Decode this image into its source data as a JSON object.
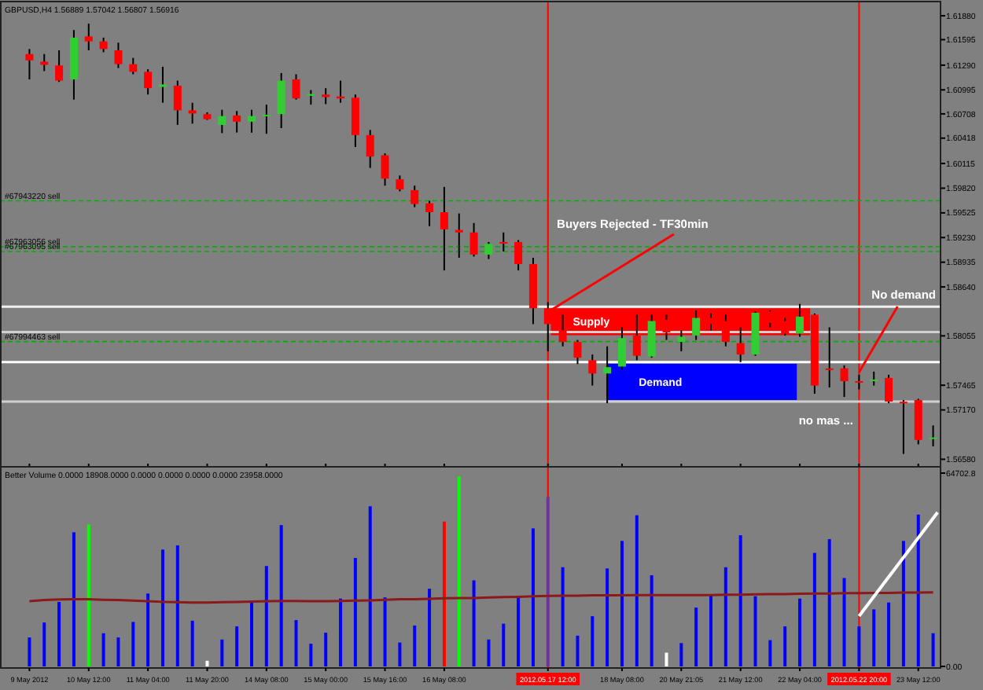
{
  "chart_data": [
    {
      "type": "candlestick",
      "title": "GBPUSD,H4 1.56889 1.57042 1.56807 1.56916",
      "categories": [
        "9 May 2012",
        null,
        null,
        null,
        "10 May 12:00",
        null,
        null,
        null,
        "11 May 04:00",
        null,
        null,
        null,
        "11 May 20:00",
        null,
        null,
        null,
        "14 May 08:00",
        null,
        null,
        null,
        "15 May 00:00",
        null,
        null,
        null,
        "15 May 16:00",
        null,
        null,
        null,
        "16 May 08:00",
        null,
        null,
        null,
        null,
        null,
        null,
        "2012.05.17 12:00",
        null,
        null,
        null,
        null,
        "18 May 08:00",
        null,
        null,
        null,
        "20 May 21:05",
        null,
        null,
        null,
        "21 May 12:00",
        null,
        null,
        null,
        "22 May 04:00",
        null,
        null,
        null,
        "2012.05.22 20:00",
        null,
        null,
        null,
        "23 May 12:00",
        null
      ],
      "ohlc": [
        [
          1.61423,
          1.61483,
          1.6112,
          1.61347
        ],
        [
          1.61332,
          1.61423,
          1.61219,
          1.61294
        ],
        [
          1.61287,
          1.61468,
          1.6109,
          1.61105
        ],
        [
          1.6112,
          1.6171,
          1.60878,
          1.61619
        ],
        [
          1.61634,
          1.61786,
          1.61468,
          1.61574
        ],
        [
          1.61574,
          1.61619,
          1.61445,
          1.61483
        ],
        [
          1.61468,
          1.61559,
          1.61256,
          1.61302
        ],
        [
          1.61302,
          1.61377,
          1.61181,
          1.61211
        ],
        [
          1.61211,
          1.61241,
          1.60939,
          1.61015
        ],
        [
          1.6103,
          1.61271,
          1.60841,
          1.6106
        ],
        [
          1.61045,
          1.61105,
          1.60576,
          1.6075
        ],
        [
          1.6075,
          1.60841,
          1.60591,
          1.60712
        ],
        [
          1.60705,
          1.60727,
          1.60636,
          1.60644
        ],
        [
          1.60576,
          1.60757,
          1.60478,
          1.60682
        ],
        [
          1.60689,
          1.60742,
          1.60485,
          1.60614
        ],
        [
          1.60614,
          1.60757,
          1.60485,
          1.60682
        ],
        [
          1.60682,
          1.60818,
          1.6047,
          1.60697
        ],
        [
          1.60705,
          1.61196,
          1.60538,
          1.61105
        ],
        [
          1.6112,
          1.61181,
          1.60878,
          1.60893
        ],
        [
          1.60924,
          1.60992,
          1.60818,
          1.60946
        ],
        [
          1.60939,
          1.61015,
          1.60825,
          1.60909
        ],
        [
          1.60916,
          1.61105,
          1.60841,
          1.60893
        ],
        [
          1.60901,
          1.60939,
          1.60312,
          1.60455
        ],
        [
          1.60455,
          1.60516,
          1.60062,
          1.60198
        ],
        [
          1.60213,
          1.60236,
          1.5985,
          1.59934
        ],
        [
          1.59926,
          1.59971,
          1.59782,
          1.59805
        ],
        [
          1.59797,
          1.5985,
          1.59593,
          1.59631
        ],
        [
          1.59639,
          1.59669,
          1.59366,
          1.59533
        ],
        [
          1.59533,
          1.59835,
          1.58837,
          1.59328
        ],
        [
          1.59321,
          1.59518,
          1.58988,
          1.59291
        ],
        [
          1.59291,
          1.59404,
          1.59003,
          1.59026
        ],
        [
          1.59026,
          1.59177,
          1.58973,
          1.59155
        ],
        [
          1.59177,
          1.59291,
          1.59064,
          1.59158
        ],
        [
          1.59177,
          1.592,
          1.58837,
          1.58913
        ],
        [
          1.58913,
          1.58988,
          1.58195,
          1.58384
        ],
        [
          1.58384,
          1.58459,
          1.5787,
          1.58195
        ],
        [
          1.58119,
          1.58308,
          1.5793,
          1.57983
        ],
        [
          1.57983,
          1.58006,
          1.57718,
          1.57794
        ],
        [
          1.57764,
          1.57832,
          1.57461,
          1.57605
        ],
        [
          1.57605,
          1.5793,
          1.5725,
          1.57681
        ],
        [
          1.57688,
          1.58157,
          1.5765,
          1.58028
        ],
        [
          1.58059,
          1.58308,
          1.57764,
          1.57817
        ],
        [
          1.57809,
          1.58308,
          1.57794,
          1.58232
        ],
        [
          1.58247,
          1.58308,
          1.58006,
          1.58096
        ],
        [
          1.57983,
          1.58119,
          1.5787,
          1.58044
        ],
        [
          1.58059,
          1.58361,
          1.58006,
          1.5827
        ],
        [
          1.5827,
          1.58323,
          1.58119,
          1.58195
        ],
        [
          1.58232,
          1.58308,
          1.5793,
          1.57983
        ],
        [
          1.57968,
          1.58157,
          1.57741,
          1.57832
        ],
        [
          1.57832,
          1.58346,
          1.57817,
          1.58331
        ],
        [
          1.58346,
          1.58361,
          1.58157,
          1.5821
        ],
        [
          1.58232,
          1.5827,
          1.58059,
          1.58081
        ],
        [
          1.58081,
          1.58437,
          1.58044,
          1.58285
        ],
        [
          1.58308,
          1.58323,
          1.57363,
          1.57461
        ],
        [
          1.57666,
          1.58157,
          1.57439,
          1.5765
        ],
        [
          1.57666,
          1.57703,
          1.57325,
          1.57514
        ],
        [
          1.57514,
          1.5759,
          1.57416,
          1.57499
        ],
        [
          1.57514,
          1.57628,
          1.57461,
          1.57533
        ],
        [
          1.57552,
          1.5759,
          1.5725,
          1.5727
        ],
        [
          1.57268,
          1.57288,
          1.56644,
          1.5725
        ],
        [
          1.57288,
          1.57303,
          1.56758,
          1.56811
        ],
        [
          1.56826,
          1.56985,
          1.56735,
          1.56841
        ]
      ],
      "colors": [
        "#ff0000",
        "#ff0000",
        "#ff0000",
        "#32cd32",
        "#ff0000",
        "#ff0000",
        "#ff0000",
        "#ff0000",
        "#ff0000",
        "#32cd32",
        "#ff0000",
        "#ff0000",
        "#ff0000",
        "#32cd32",
        "#ff0000",
        "#32cd32",
        "#32cd32",
        "#32cd32",
        "#ff0000",
        "#32cd32",
        "#ff0000",
        "#ff0000",
        "#ff0000",
        "#ff0000",
        "#ff0000",
        "#ff0000",
        "#ff0000",
        "#ff0000",
        "#ff0000",
        "#ff0000",
        "#ff0000",
        "#32cd32",
        "#ff0000",
        "#ff0000",
        "#ff0000",
        "#ff0000",
        "#ff0000",
        "#ff0000",
        "#ff0000",
        "#32cd32",
        "#32cd32",
        "#ff0000",
        "#32cd32",
        "#ff0000",
        "#32cd32",
        "#32cd32",
        "#ff0000",
        "#ff0000",
        "#ff0000",
        "#32cd32",
        "#ff0000",
        "#ff0000",
        "#32cd32",
        "#ff0000",
        "#ff0000",
        "#ff0000",
        "#ff0000",
        "#32cd32",
        "#ff0000",
        "#ff0000",
        "#ff0000",
        "#32cd32"
      ],
      "ylim": [
        1.5649,
        1.6205
      ],
      "yticks": [
        {
          "value": 1.6188,
          "label": "1.61880"
        },
        {
          "value": 1.61595,
          "label": "1.61595"
        },
        {
          "value": 1.6129,
          "label": "1.61290"
        },
        {
          "value": 1.60995,
          "label": "1.60995"
        },
        {
          "value": 1.60708,
          "label": "1.60708"
        },
        {
          "value": 1.60418,
          "label": "1.60418"
        },
        {
          "value": 1.60115,
          "label": "1.60115"
        },
        {
          "value": 1.5982,
          "label": "1.59820"
        },
        {
          "value": 1.59525,
          "label": "1.59525"
        },
        {
          "value": 1.5923,
          "label": "1.59230"
        },
        {
          "value": 1.58935,
          "label": "1.58935"
        },
        {
          "value": 1.5864,
          "label": "1.58640"
        },
        {
          "value": 1.58055,
          "label": "1.58055"
        },
        {
          "value": 1.57465,
          "label": "1.57465"
        },
        {
          "value": 1.5717,
          "label": "1.57170"
        },
        {
          "value": 1.5658,
          "label": "1.56580"
        }
      ],
      "tick_labels": "y",
      "ref_lines": [
        {
          "axis": "x",
          "value": "2012.05.17 12:00",
          "color": "#ff0000"
        },
        {
          "axis": "x",
          "value": "2012.05.22 20:00",
          "color": "#ff0000"
        },
        {
          "axis": "y",
          "value": 1.58403,
          "color": "#f0f0f0"
        },
        {
          "axis": "y",
          "value": 1.581,
          "color": "#d0d0d0"
        },
        {
          "axis": "y",
          "value": 1.57741,
          "color": "#ffffff"
        },
        {
          "axis": "y",
          "value": 1.57269,
          "color": "#d0d0d0"
        },
        {
          "axis": "y",
          "value": 1.59669,
          "label": "#67943220 sell",
          "color": "#00b000",
          "line_style": "dashed"
        },
        {
          "axis": "y",
          "value": 1.59121,
          "label": "#67963056 sell",
          "color": "#00b000",
          "line_style": "dashed"
        },
        {
          "axis": "y",
          "value": 1.59064,
          "label": "#67963095 sell",
          "color": "#00b000",
          "line_style": "dashed"
        },
        {
          "axis": "y",
          "value": 1.57987,
          "label": "#67994463 sell",
          "color": "#00b000",
          "line_style": "dashed"
        }
      ],
      "bands": [
        {
          "axis": "y",
          "from": 1.58063,
          "to": 1.58384,
          "label": "Supply",
          "color": "#ff0000"
        },
        {
          "axis": "y",
          "from": 1.57288,
          "to": 1.57722,
          "label": "Demand",
          "color": "#0000ff"
        }
      ],
      "annotations": [
        {
          "text": "Buyers Rejected - TF30min",
          "x": "2012.05.17 12:00",
          "y": 1.5834
        },
        {
          "text": "No demand",
          "x": "2012.05.22 20:00",
          "y": 1.5762
        },
        "no mas ..."
      ]
    },
    {
      "type": "bar",
      "title": "Better Volume 0.0000 18908.0000 0.0000 0.0000 0.0000 0.0000 23958.0000",
      "categories": [
        "9 May 2012",
        null,
        null,
        null,
        "10 May 12:00",
        null,
        null,
        null,
        "11 May 04:00",
        null,
        null,
        null,
        "11 May 20:00",
        null,
        null,
        null,
        "14 May 08:00",
        null,
        null,
        null,
        "15 May 00:00",
        null,
        null,
        null,
        "15 May 16:00",
        null,
        null,
        null,
        "16 May 08:00",
        null,
        null,
        null,
        null,
        null,
        null,
        "2012.05.17 12:00",
        null,
        null,
        null,
        null,
        "18 May 08:00",
        null,
        null,
        null,
        "20 May 21:05",
        null,
        null,
        null,
        "21 May 12:00",
        null,
        null,
        null,
        "22 May 04:00",
        null,
        null,
        null,
        "2012.05.22 20:00",
        null,
        null,
        null,
        "23 May 12:00",
        null
      ],
      "series": [
        {
          "type": "bar",
          "values": [
            9700,
            14700,
            21600,
            44900,
            47500,
            11100,
            9700,
            14900,
            24400,
            39100,
            40500,
            15300,
            1900,
            9000,
            13400,
            21600,
            33600,
            47300,
            15500,
            7600,
            11300,
            22700,
            36300,
            53600,
            23100,
            8000,
            13700,
            26000,
            48500,
            63600,
            28800,
            9000,
            14300,
            23500,
            46200,
            56700,
            33200,
            10300,
            16800,
            32800,
            42000,
            50600,
            30500,
            4600,
            7800,
            19700,
            23700,
            33200,
            43900,
            23500,
            8800,
            13400,
            22700,
            38000,
            42600,
            29600,
            13400,
            19100,
            21400,
            42000,
            50800,
            11100
          ],
          "colors": [
            "#0000ff",
            "#0000ff",
            "#0000ff",
            "#0000ff",
            "#00ff00",
            "#0000ff",
            "#0000ff",
            "#0000ff",
            "#0000ff",
            "#0000ff",
            "#0000ff",
            "#0000ff",
            "#ffffff",
            "#0000ff",
            "#0000ff",
            "#0000ff",
            "#0000ff",
            "#0000ff",
            "#0000ff",
            "#0000ff",
            "#0000ff",
            "#0000ff",
            "#0000ff",
            "#0000ff",
            "#0000ff",
            "#0000ff",
            "#0000ff",
            "#0000ff",
            "#ff0000",
            "#00ff00",
            "#0000ff",
            "#0000ff",
            "#0000ff",
            "#0000ff",
            "#0000ff",
            "#7030a0",
            "#0000ff",
            "#0000ff",
            "#0000ff",
            "#0000ff",
            "#0000ff",
            "#0000ff",
            "#0000ff",
            "#ffffff",
            "#0000ff",
            "#0000ff",
            "#0000ff",
            "#0000ff",
            "#0000ff",
            "#0000ff",
            "#0000ff",
            "#0000ff",
            "#0000ff",
            "#0000ff",
            "#0000ff",
            "#0000ff",
            "#0000ff",
            "#0000ff",
            "#0000ff",
            "#0000ff",
            "#0000ff",
            "#0000ff"
          ]
        },
        {
          "type": "line",
          "color": "#8b1a1a",
          "values": [
            21800,
            22200,
            22400,
            22500,
            22500,
            22300,
            22200,
            22000,
            21800,
            21600,
            21500,
            21400,
            21400,
            21500,
            21600,
            21700,
            21800,
            21900,
            21900,
            21800,
            21800,
            21900,
            22000,
            22100,
            22300,
            22500,
            22500,
            22600,
            22800,
            22900,
            22900,
            23100,
            23200,
            23300,
            23500,
            23600,
            23700,
            23700,
            23800,
            23800,
            23800,
            23900,
            23900,
            23900,
            23900,
            23900,
            23900,
            24000,
            24000,
            24100,
            24200,
            24200,
            24300,
            24400,
            24400,
            24500,
            24500,
            24600,
            24600,
            24700,
            24700,
            24800
          ]
        }
      ],
      "ylim": [
        0,
        64702.8
      ],
      "yticks": [
        {
          "value": 0,
          "label": "0.00"
        },
        {
          "value": 64702.8,
          "label": "64702.8"
        }
      ],
      "ref_lines": [
        {
          "axis": "x",
          "value": "2012.05.17 12:00",
          "color": "#ff0000"
        },
        {
          "axis": "x",
          "value": "2012.05.22 20:00",
          "color": "#ff0000"
        }
      ]
    }
  ]
}
